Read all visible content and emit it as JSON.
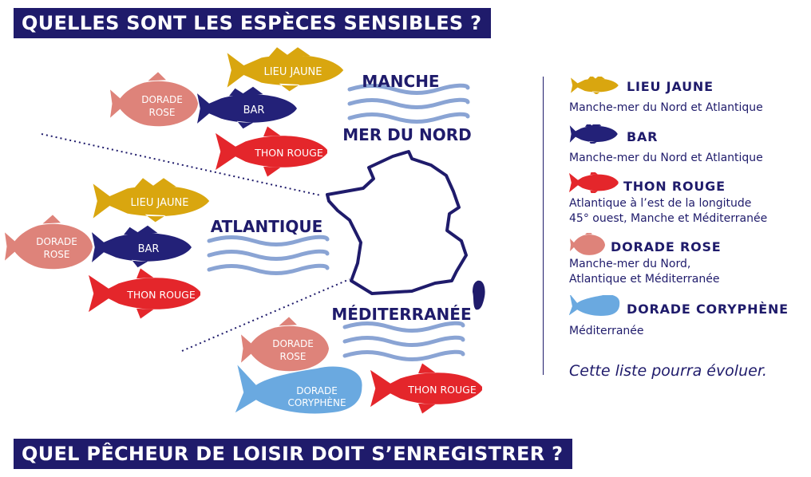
{
  "headings": {
    "top": "QUELLES SONT LES ESPÈCES SENSIBLES ?",
    "bottom": "QUEL PÊCHEUR DE LOISIR DOIT S’ENREGISTRER ?"
  },
  "map": {
    "regions": [
      {
        "name": "MANCHE",
        "name2": "MER DU NORD"
      },
      {
        "name": "ATLANTIQUE"
      },
      {
        "name": "MÉDITERRANÉE"
      }
    ],
    "fish_labels": {
      "lieu_jaune": "LIEU JAUNE",
      "bar": "BAR",
      "thon_rouge": "THON ROUGE",
      "dorade_rose_1": "DORADE",
      "dorade_rose_2": "ROSE",
      "coryphene_1": "DORADE",
      "coryphene_2": "CORYPHÈNE"
    }
  },
  "legend": {
    "items": [
      {
        "name": "LIEU JAUNE",
        "desc": [
          "Manche-mer du Nord et Atlantique"
        ],
        "icon": "lieu-jaune-fish-icon",
        "color": "#d9a60f"
      },
      {
        "name": "BAR",
        "desc": [
          "Manche-mer du Nord et Atlantique"
        ],
        "icon": "bar-fish-icon",
        "color": "#232178"
      },
      {
        "name": "THON ROUGE",
        "desc": [
          "Atlantique à l’est de la longitude",
          "45° ouest, Manche et Méditerranée"
        ],
        "icon": "thon-rouge-fish-icon",
        "color": "#e4262b"
      },
      {
        "name": "DORADE ROSE",
        "desc": [
          "Manche-mer du Nord,",
          "Atlantique et Méditerranée"
        ],
        "icon": "dorade-rose-fish-icon",
        "color": "#de837a"
      },
      {
        "name": "DORADE CORYPHÈNE",
        "desc": [
          "Méditerranée"
        ],
        "icon": "dorade-coryphene-fish-icon",
        "color": "#6aa9e0"
      }
    ],
    "note": "Cette liste pourra évoluer."
  },
  "colors": {
    "navy": "#1f1b6b",
    "wave": "#8aa4d4",
    "lieu_jaune": "#d9a60f",
    "bar": "#232178",
    "thon_rouge": "#e4262b",
    "dorade_rose": "#de837a",
    "coryphene": "#6aa9e0"
  }
}
